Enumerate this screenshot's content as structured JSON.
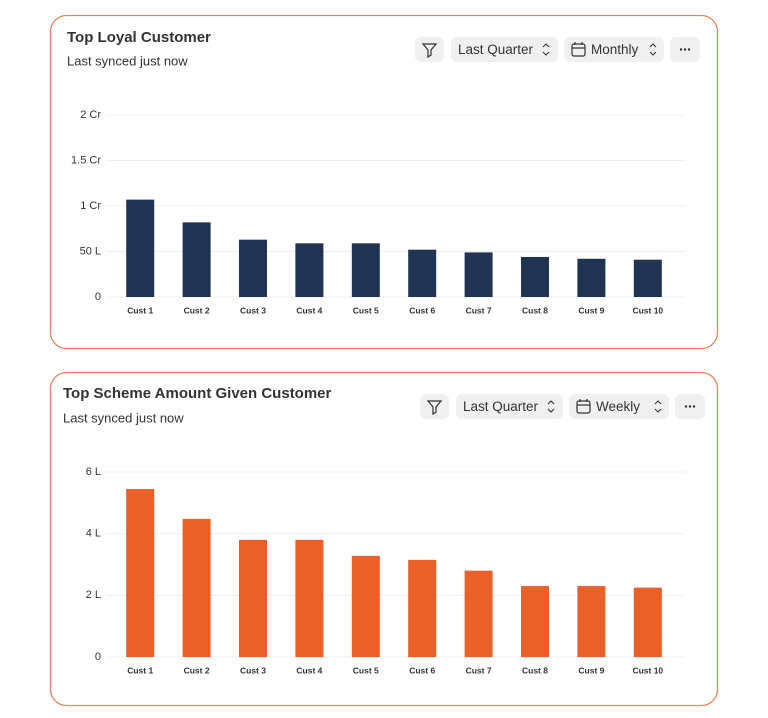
{
  "chart_data": [
    {
      "type": "bar",
      "title": "Top Loyal Customer",
      "subtitle": "Last synced just now",
      "period": "Last Quarter",
      "interval": "Monthly",
      "categories": [
        "Cust 1",
        "Cust 2",
        "Cust 3",
        "Cust 4",
        "Cust 5",
        "Cust 6",
        "Cust 7",
        "Cust 8",
        "Cust 9",
        "Cust 10"
      ],
      "values": [
        107,
        82,
        63,
        59,
        59,
        52,
        49,
        44,
        42,
        41
      ],
      "color": "#213352",
      "ylim": [
        0,
        200
      ],
      "yticks": [
        0,
        {
          "value": 50,
          "label": "50 L"
        },
        {
          "value": 100,
          "label": "1 Cr"
        },
        {
          "value": 150,
          "label": "1.5 Cr"
        },
        {
          "value": 200,
          "label": "2 Cr"
        }
      ],
      "grid": true
    },
    {
      "type": "bar",
      "title": "Top Scheme Amount Given Customer",
      "subtitle": "Last synced just now",
      "period": "Last Quarter",
      "interval": "Weekly",
      "categories": [
        "Cust 1",
        "Cust 2",
        "Cust 3",
        "Cust 4",
        "Cust 5",
        "Cust 6",
        "Cust 7",
        "Cust 8",
        "Cust 9",
        "Cust 10"
      ],
      "values": [
        5.45,
        4.48,
        3.8,
        3.8,
        3.28,
        3.15,
        2.8,
        2.3,
        2.3,
        2.25
      ],
      "color": "#eb5f28",
      "ylim": [
        0,
        6
      ],
      "yticks": [
        0,
        {
          "value": 2,
          "label": "2 L"
        },
        {
          "value": 4,
          "label": "4 L"
        },
        {
          "value": 6,
          "label": "6 L"
        }
      ],
      "grid": true
    }
  ]
}
